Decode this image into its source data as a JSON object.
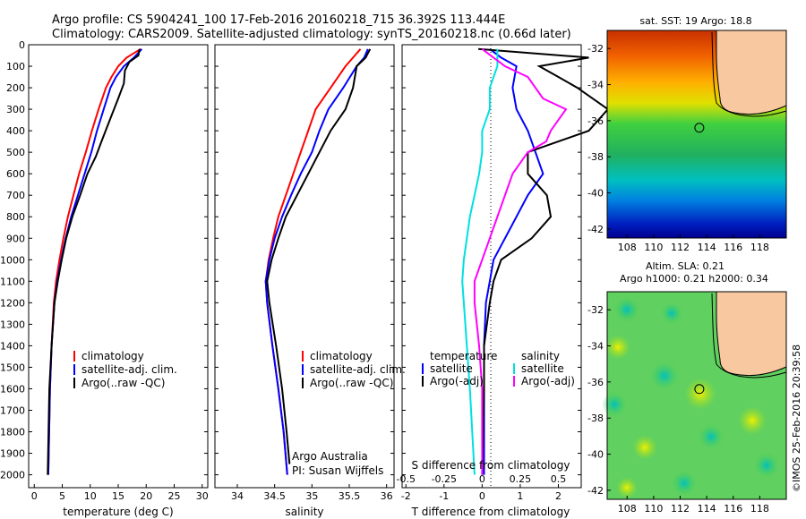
{
  "header": {
    "line1": "Argo profile: CS 5904241_100 17-Feb-2016 20160218_715 36.392S 113.444E",
    "line2": "Climatology: CARS2009. Satellite-adjusted climatology: synTS_20160218.nc (0.66d later)"
  },
  "colors": {
    "climatology": "#ff0000",
    "satellite": "#0000ff",
    "argo": "#000000",
    "sal_sat": "#00e0e0",
    "sal_argo": "#ff00ff",
    "land": "#f8c8a0"
  },
  "chart_data": [
    {
      "type": "line",
      "xlabel": "temperature (deg C)",
      "ylabel": "",
      "xlim": [
        -1,
        31
      ],
      "ylim": [
        2060,
        0
      ],
      "xticks": [
        0,
        5,
        10,
        15,
        20,
        25,
        30
      ],
      "yticks": [
        0,
        100,
        200,
        300,
        400,
        500,
        600,
        700,
        800,
        900,
        1000,
        1100,
        1200,
        1300,
        1400,
        1500,
        1600,
        1700,
        1800,
        1900,
        2000
      ],
      "legend": {
        "placement": "center-left",
        "entries": [
          "climatology",
          "satellite-adj. clim.",
          "Argo(..raw -QC)"
        ]
      },
      "series": [
        {
          "name": "climatology",
          "color": "#ff0000",
          "depth": [
            20,
            60,
            100,
            150,
            200,
            300,
            400,
            500,
            600,
            700,
            800,
            900,
            1000,
            1100,
            1200,
            1400,
            1600,
            2000
          ],
          "values": [
            19.0,
            16.5,
            15.0,
            13.8,
            12.8,
            11.5,
            10.3,
            9.2,
            8.0,
            7.0,
            6.0,
            5.2,
            4.5,
            3.9,
            3.5,
            3.1,
            2.8,
            2.5
          ]
        },
        {
          "name": "satellite-adj. clim.",
          "color": "#0000ff",
          "depth": [
            20,
            60,
            100,
            150,
            200,
            300,
            400,
            500,
            600,
            700,
            800,
            900,
            1000,
            1100,
            1200,
            1400,
            1600,
            2000
          ],
          "values": [
            19.2,
            17.8,
            16.0,
            14.6,
            13.6,
            12.4,
            11.2,
            10.2,
            9.0,
            7.8,
            6.6,
            5.6,
            4.8,
            4.1,
            3.6,
            3.1,
            2.8,
            2.5
          ]
        },
        {
          "name": "Argo(..raw -QC)",
          "color": "#000000",
          "depth": [
            20,
            50,
            80,
            120,
            180,
            250,
            350,
            450,
            520,
            600,
            700,
            800,
            900,
            1000,
            1100,
            1200,
            1400,
            1600,
            2000
          ],
          "values": [
            18.8,
            18.6,
            17.0,
            16.2,
            16.0,
            15.0,
            13.5,
            12.0,
            11.0,
            9.5,
            8.2,
            6.8,
            5.7,
            4.9,
            4.2,
            3.6,
            3.1,
            2.7,
            2.4
          ]
        }
      ]
    },
    {
      "type": "line",
      "xlabel": "salinity",
      "ylabel": "",
      "xlim": [
        33.7,
        36.1
      ],
      "ylim": [
        2060,
        0
      ],
      "xticks": [
        34,
        34.5,
        35,
        35.5,
        36
      ],
      "xtick_labels": [
        "34",
        "34.5",
        "35",
        "35.5",
        "36"
      ],
      "legend": {
        "placement": "center-right",
        "entries": [
          "climatology",
          "satellite-adj. clim.",
          "Argo(..raw -QC)"
        ]
      },
      "annotation": [
        "Argo Australia",
        "PI: Susan Wijffels"
      ],
      "series": [
        {
          "name": "climatology",
          "color": "#ff0000",
          "depth": [
            20,
            60,
            100,
            200,
            300,
            400,
            500,
            600,
            700,
            800,
            900,
            1000,
            1100,
            1200,
            1400,
            1600,
            1800,
            2000
          ],
          "values": [
            35.65,
            35.55,
            35.45,
            35.25,
            35.05,
            34.95,
            34.85,
            34.75,
            34.65,
            34.55,
            34.48,
            34.42,
            34.38,
            34.4,
            34.47,
            34.55,
            34.62,
            34.67
          ]
        },
        {
          "name": "satellite-adj. clim.",
          "color": "#0000ff",
          "depth": [
            20,
            60,
            100,
            200,
            300,
            400,
            500,
            600,
            700,
            800,
            900,
            1000,
            1100,
            1200,
            1400,
            1600,
            1800,
            2000
          ],
          "values": [
            35.75,
            35.7,
            35.6,
            35.42,
            35.22,
            35.1,
            35.0,
            34.85,
            34.72,
            34.6,
            34.5,
            34.43,
            34.38,
            34.4,
            34.47,
            34.55,
            34.62,
            34.67
          ]
        },
        {
          "name": "Argo(..raw -QC)",
          "color": "#000000",
          "depth": [
            20,
            60,
            100,
            200,
            300,
            350,
            400,
            500,
            600,
            700,
            800,
            900,
            1000,
            1100,
            1200,
            1400,
            1600,
            1800,
            1950
          ],
          "values": [
            35.78,
            35.72,
            35.6,
            35.55,
            35.45,
            35.35,
            35.25,
            35.1,
            34.95,
            34.8,
            34.65,
            34.55,
            34.46,
            34.4,
            34.43,
            34.52,
            34.6,
            34.66,
            34.7
          ]
        }
      ]
    },
    {
      "type": "line",
      "xlabel": "T difference from climatology",
      "xlabel_top": "S difference from climatology",
      "xlim": [
        -2.1,
        2.6
      ],
      "ylim": [
        2060,
        0
      ],
      "xticks": [
        -2,
        -1,
        0,
        1,
        2
      ],
      "s_ticks": [
        -0.5,
        -0.25,
        0,
        0.25,
        0.5
      ],
      "s_tick_labels": [
        "-0.5",
        "-0.25",
        "0",
        "0.25",
        "0.5"
      ],
      "legend": {
        "placement": "center",
        "groups": [
          {
            "title": "temperature",
            "entries": [
              "satellite",
              "Argo(-adj)"
            ]
          },
          {
            "title": "salinity",
            "entries": [
              "satellite",
              "Argo(-adj)"
            ]
          }
        ]
      },
      "series": [
        {
          "name": "temperature satellite",
          "color": "#0000ff",
          "depth": [
            20,
            60,
            100,
            200,
            300,
            400,
            500,
            600,
            700,
            800,
            900,
            1000,
            1100,
            1200,
            1400,
            1600,
            2000
          ],
          "values": [
            0.2,
            0.5,
            0.9,
            0.8,
            0.9,
            1.2,
            1.4,
            1.6,
            1.2,
            0.9,
            0.6,
            0.3,
            0.2,
            0.1,
            0.05,
            0.05,
            0.05
          ]
        },
        {
          "name": "temperature Argo(-adj)",
          "color": "#000000",
          "depth": [
            20,
            60,
            100,
            150,
            200,
            300,
            400,
            500,
            600,
            700,
            800,
            900,
            1000,
            1100,
            1200,
            1400,
            1600,
            2000
          ],
          "values": [
            -0.1,
            2.8,
            1.5,
            2.0,
            2.5,
            3.3,
            2.8,
            1.2,
            1.2,
            1.7,
            1.8,
            1.3,
            0.5,
            0.3,
            0.2,
            0.05,
            0.05,
            0.0
          ]
        },
        {
          "name": "salinity satellite",
          "color": "#00e0e0",
          "depth": [
            20,
            100,
            200,
            300,
            400,
            500,
            600,
            700,
            800,
            900,
            1000,
            1100,
            1200,
            1400,
            1600,
            2000
          ],
          "values": [
            0.1,
            0.1,
            0.05,
            0.05,
            0.0,
            0.0,
            -0.02,
            -0.05,
            -0.08,
            -0.1,
            -0.12,
            -0.13,
            -0.12,
            -0.1,
            -0.08,
            -0.05
          ]
        },
        {
          "name": "salinity Argo(-adj)",
          "color": "#ff00ff",
          "depth": [
            20,
            100,
            150,
            200,
            250,
            300,
            350,
            400,
            450,
            500,
            600,
            700,
            800,
            900,
            1000,
            1100,
            1200,
            1400,
            1600,
            2000
          ],
          "values": [
            0.0,
            0.15,
            0.3,
            0.35,
            0.4,
            0.55,
            0.5,
            0.45,
            0.42,
            0.3,
            0.2,
            0.15,
            0.1,
            0.05,
            0.0,
            -0.05,
            -0.05,
            -0.02,
            0.0,
            0.0
          ]
        }
      ]
    },
    {
      "type": "heatmap",
      "title": "sat. SST: 19 Argo: 18.8",
      "xticks": [
        108,
        110,
        112,
        114,
        116,
        118
      ],
      "yticks": [
        -32,
        -34,
        -36,
        -38,
        -40,
        -42
      ],
      "xlim": [
        106.5,
        120
      ],
      "ylim": [
        -42.5,
        -31
      ],
      "argo_marker": {
        "lon": 113.444,
        "lat": -36.392
      }
    },
    {
      "type": "heatmap",
      "title": "Altim. SLA: 0.21",
      "subtitle": "Argo h1000: 0.21 h2000: 0.34",
      "xticks": [
        108,
        110,
        112,
        114,
        116,
        118
      ],
      "yticks": [
        -32,
        -34,
        -36,
        -38,
        -40,
        -42
      ],
      "xlim": [
        106.5,
        120
      ],
      "ylim": [
        -42.5,
        -31
      ],
      "argo_marker": {
        "lon": 113.444,
        "lat": -36.392
      }
    }
  ],
  "credit": "©IMOS 25-Feb-2016 20:39:58"
}
